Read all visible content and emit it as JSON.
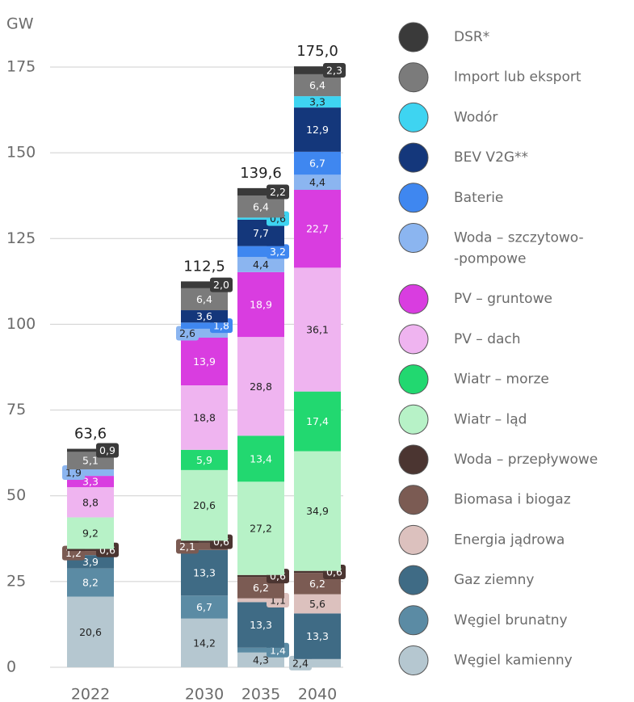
{
  "chart_data": {
    "type": "stacked_bar",
    "y_label": "GW",
    "categories": [
      "2022",
      "2030",
      "2035",
      "2040"
    ],
    "ylim": [
      0,
      175
    ],
    "yticks": [
      0,
      25,
      50,
      75,
      100,
      125,
      150,
      175
    ],
    "grid": true,
    "totals": [
      63.6,
      112.5,
      139.6,
      175.0
    ],
    "total_labels": [
      "63,6",
      "112,5",
      "139,6",
      "175,0"
    ],
    "series": [
      {
        "name": "Węgiel kamienny",
        "color": "#b5c7d0",
        "values": [
          20.6,
          14.2,
          4.3,
          2.4
        ],
        "value_labels": [
          "20,6",
          "14,2",
          "4,3",
          "2,4"
        ]
      },
      {
        "name": "Węgiel brunatny",
        "color": "#5b8ba4",
        "values": [
          8.2,
          6.7,
          1.4,
          null
        ],
        "value_labels": [
          "8,2",
          "6,7",
          "1,4",
          null
        ]
      },
      {
        "name": "Gaz ziemny",
        "color": "#3f6b85",
        "values": [
          3.9,
          13.3,
          13.3,
          13.3
        ],
        "value_labels": [
          "3,9",
          "13,3",
          "13,3",
          "13,3"
        ]
      },
      {
        "name": "Energia jądrowa",
        "color": "#dcc1be",
        "values": [
          null,
          null,
          1.1,
          5.6
        ],
        "value_labels": [
          null,
          null,
          "1,1",
          "5,6"
        ]
      },
      {
        "name": "Biomasa i biogaz",
        "color": "#7b5b53",
        "values": [
          1.2,
          2.1,
          6.2,
          6.2
        ],
        "value_labels": [
          "1,2",
          "2,1",
          "6,2",
          "6,2"
        ]
      },
      {
        "name": "Woda – przepływowe",
        "color": "#4b3531",
        "values": [
          0.6,
          0.6,
          0.6,
          0.6
        ],
        "value_labels": [
          "0,6",
          "0,6",
          "0,6",
          "0,6"
        ]
      },
      {
        "name": "Wiatr – ląd",
        "color": "#b7f2c7",
        "values": [
          9.2,
          20.6,
          27.2,
          34.9
        ],
        "value_labels": [
          "9,2",
          "20,6",
          "27,2",
          "34,9"
        ]
      },
      {
        "name": "Wiatr – morze",
        "color": "#22d870",
        "values": [
          null,
          5.9,
          13.4,
          17.4
        ],
        "value_labels": [
          null,
          "5,9",
          "13,4",
          "17,4"
        ]
      },
      {
        "name": "PV – dach",
        "color": "#efb4f0",
        "values": [
          8.8,
          18.8,
          28.8,
          36.1
        ],
        "value_labels": [
          "8,8",
          "18,8",
          "28,8",
          "36,1"
        ]
      },
      {
        "name": "PV – gruntowe",
        "color": "#d93de0",
        "values": [
          3.3,
          13.9,
          18.9,
          22.7
        ],
        "value_labels": [
          "3,3",
          "13,9",
          "18,9",
          "22,7"
        ]
      },
      {
        "name": "Woda – szczytowo--pompowe",
        "color": "#8bb5f0",
        "values": [
          1.9,
          2.6,
          4.4,
          4.4
        ],
        "value_labels": [
          "1,9",
          "2,6",
          "4,4",
          "4,4"
        ]
      },
      {
        "name": "Baterie",
        "color": "#3f87f0",
        "values": [
          null,
          1.8,
          3.2,
          6.7
        ],
        "value_labels": [
          null,
          "1,8",
          "3,2",
          "6,7"
        ]
      },
      {
        "name": "BEV V2G**",
        "color": "#14377b",
        "values": [
          null,
          3.6,
          7.7,
          12.9
        ],
        "value_labels": [
          null,
          "3,6",
          "7,7",
          "12,9"
        ]
      },
      {
        "name": "Wodór",
        "color": "#3ed4f1",
        "values": [
          null,
          null,
          0.6,
          3.3
        ],
        "value_labels": [
          null,
          null,
          "0,6",
          "3,3"
        ]
      },
      {
        "name": "Import lub eksport",
        "color": "#7b7b7b",
        "values": [
          5.1,
          6.4,
          6.4,
          6.4
        ],
        "value_labels": [
          "5,1",
          "6,4",
          "6,4",
          "6,4"
        ]
      },
      {
        "name": "DSR*",
        "color": "#3a3a3a",
        "values": [
          0.9,
          2.0,
          2.2,
          2.3
        ],
        "value_labels": [
          "0,9",
          "2,0",
          "2,2",
          "2,3"
        ]
      }
    ]
  }
}
